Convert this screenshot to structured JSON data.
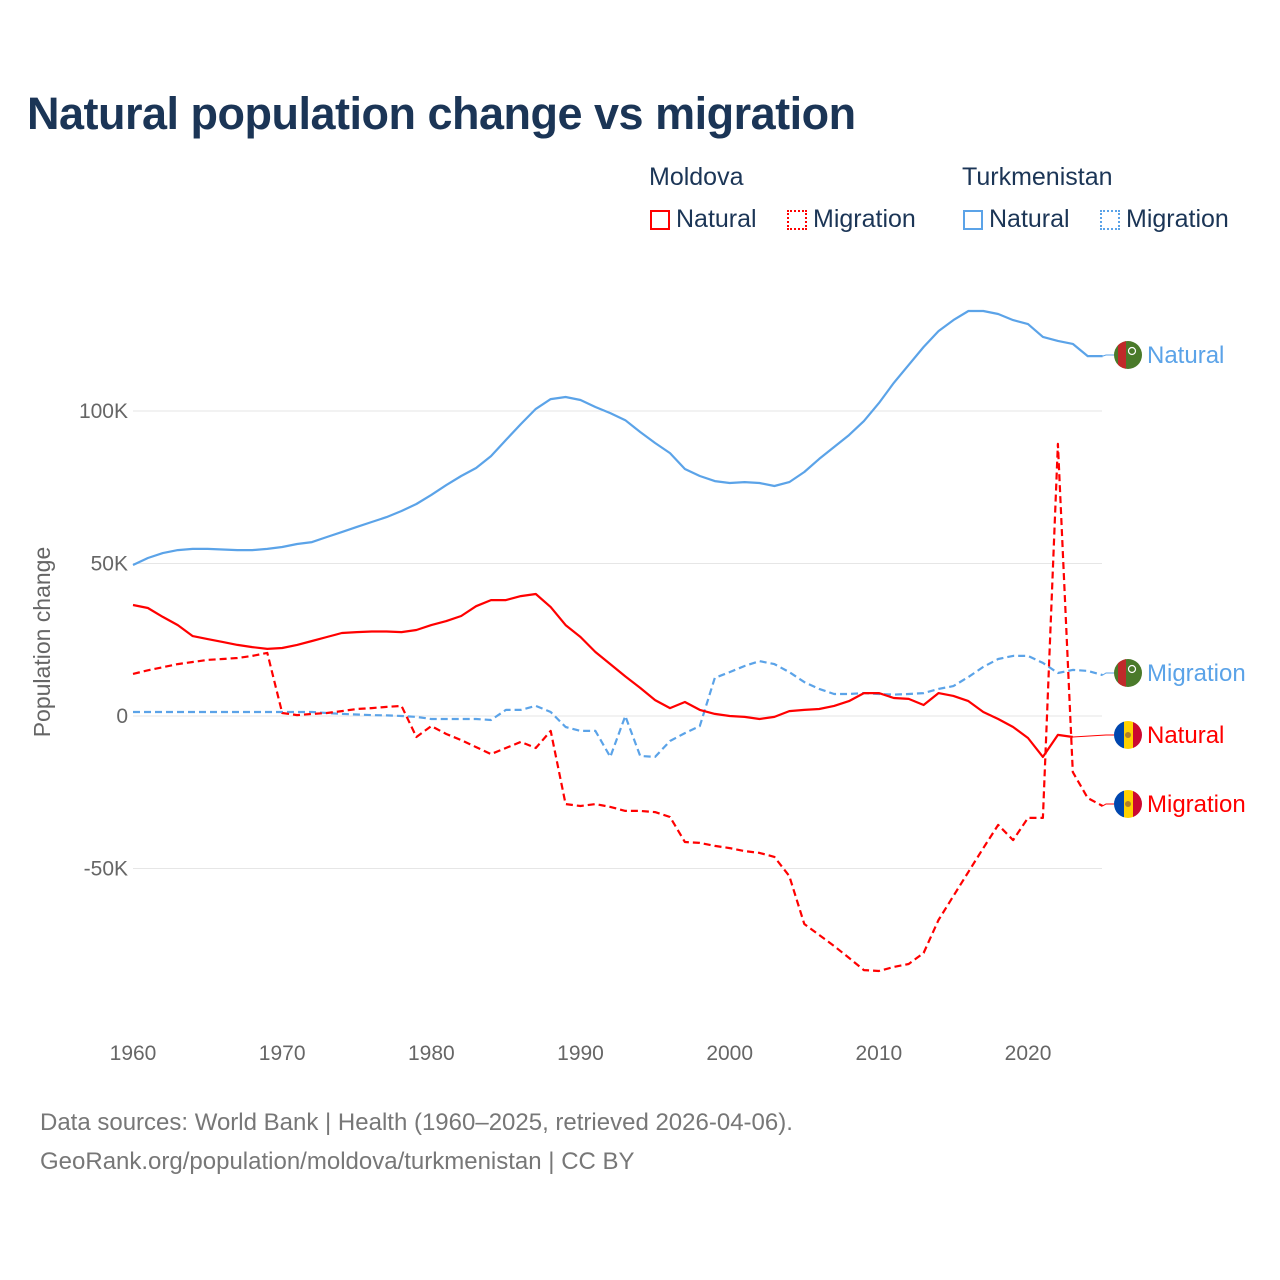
{
  "title": "Natural population change vs migration",
  "legend": {
    "groups": [
      {
        "name": "Moldova",
        "color": "#ff0000",
        "items": [
          "Natural",
          "Migration"
        ]
      },
      {
        "name": "Turkmenistan",
        "color": "#5ba3e8",
        "items": [
          "Natural",
          "Migration"
        ]
      }
    ]
  },
  "footer": {
    "line1": "Data sources: World Bank | Health (1960–2025, retrieved 2026-04-06).",
    "line2": "GeoRank.org/population/moldova/turkmenistan | CC BY"
  },
  "chart_data": {
    "type": "line",
    "title": "Natural population change vs migration",
    "xlabel": "",
    "ylabel": "Population change",
    "xlim": [
      1960,
      2025
    ],
    "ylim": [
      -95000,
      145000
    ],
    "x_ticks": [
      1960,
      1970,
      1980,
      1990,
      2000,
      2010,
      2020
    ],
    "y_ticks": [
      {
        "v": 100000,
        "label": "100K"
      },
      {
        "v": 50000,
        "label": "50K"
      },
      {
        "v": 0,
        "label": "0"
      },
      {
        "v": -50000,
        "label": "-50K"
      }
    ],
    "grid": true,
    "x_start": 1960,
    "series": [
      {
        "name": "Turkmenistan Natural",
        "label": "Natural",
        "color": "#5ba3e8",
        "dash": false,
        "flag": "turkmenistan",
        "values_k": [
          49.5,
          51.8,
          53.4,
          54.4,
          54.8,
          54.8,
          54.6,
          54.4,
          54.4,
          54.8,
          55.4,
          56.4,
          57,
          58.7,
          60.3,
          62,
          63.6,
          65.2,
          67.2,
          69.5,
          72.5,
          75.7,
          78.7,
          81.3,
          85.2,
          90.5,
          95.7,
          100.7,
          103.9,
          104.6,
          103.6,
          101.3,
          99.3,
          97,
          93.1,
          89.5,
          86.2,
          81,
          78.7,
          77,
          76.4,
          76.7,
          76.4,
          75.4,
          76.7,
          80,
          84.3,
          88.2,
          92.1,
          96.7,
          102.6,
          109.2,
          115.1,
          121,
          126.2,
          129.8,
          132.8,
          132.8,
          131.8,
          129.8,
          128.5,
          124.3,
          123,
          122,
          118,
          118
        ]
      },
      {
        "name": "Turkmenistan Migration",
        "label": "Migration",
        "color": "#5ba3e8",
        "dash": true,
        "flag": "turkmenistan",
        "values_k": [
          1.3,
          1.3,
          1.3,
          1.3,
          1.3,
          1.3,
          1.3,
          1.3,
          1.3,
          1.3,
          1.3,
          1.3,
          1.3,
          1,
          0.7,
          0.5,
          0.3,
          0.2,
          0,
          -0.3,
          -1,
          -1,
          -1,
          -1,
          -1.3,
          2,
          2,
          3.3,
          1.3,
          -3.6,
          -4.9,
          -4.9,
          -13.4,
          0,
          -13.1,
          -13.4,
          -8.2,
          -5.6,
          -3.3,
          12.5,
          14.4,
          16.4,
          18,
          17,
          14.4,
          11.1,
          8.9,
          7.2,
          7.2,
          7.5,
          7.2,
          7,
          7.2,
          7.5,
          8.9,
          9.8,
          12.8,
          16.1,
          18.7,
          19.7,
          19.7,
          17.4,
          14.1,
          15.1,
          14.8,
          13.4
        ]
      },
      {
        "name": "Moldova Natural",
        "label": "Natural",
        "color": "#ff0000",
        "dash": false,
        "flag": "moldova",
        "values_k": [
          36.4,
          35.4,
          32.5,
          29.8,
          26.2,
          25.2,
          24.3,
          23.3,
          22.6,
          22,
          22.3,
          23.3,
          24.6,
          25.9,
          27.2,
          27.5,
          27.7,
          27.7,
          27.5,
          28.2,
          29.8,
          31.1,
          32.8,
          36,
          38,
          38,
          39.3,
          40,
          35.7,
          29.8,
          25.9,
          21,
          17,
          13,
          9.2,
          5.2,
          2.6,
          4.6,
          2,
          0.7,
          0,
          -0.3,
          -1,
          -0.3,
          1.6,
          2,
          2.3,
          3.3,
          4.9,
          7.5,
          7.5,
          5.9,
          5.6,
          3.6,
          7.5,
          6.6,
          4.9,
          1.3,
          -1,
          -3.6,
          -7.2,
          -13.4,
          -6.2,
          -6.9
        ]
      },
      {
        "name": "Moldova Migration",
        "label": "Migration",
        "color": "#ff0000",
        "dash": true,
        "flag": "moldova",
        "values_k": [
          13.8,
          15,
          16,
          17,
          17.7,
          18.4,
          18.7,
          19,
          19.7,
          20.7,
          1,
          0.3,
          0.7,
          1,
          1.6,
          2.3,
          2.6,
          3,
          3.3,
          -6.9,
          -3.3,
          -5.9,
          -7.9,
          -10.2,
          -12.5,
          -10.5,
          -8.5,
          -10.5,
          -4.9,
          -28.9,
          -29.5,
          -28.9,
          -29.8,
          -31.1,
          -31.1,
          -31.5,
          -33.1,
          -41.3,
          -41.6,
          -42.6,
          -43.3,
          -44.3,
          -44.9,
          -46.2,
          -52.5,
          -68.2,
          -71.8,
          -75.4,
          -79.3,
          -83.3,
          -83.6,
          -82.3,
          -81.3,
          -77.7,
          -66.9,
          -59,
          -51.1,
          -43.3,
          -35.7,
          -40.7,
          -33.4,
          -33.4,
          89.2,
          -18.4,
          -26.9,
          -29.5
        ]
      }
    ]
  }
}
